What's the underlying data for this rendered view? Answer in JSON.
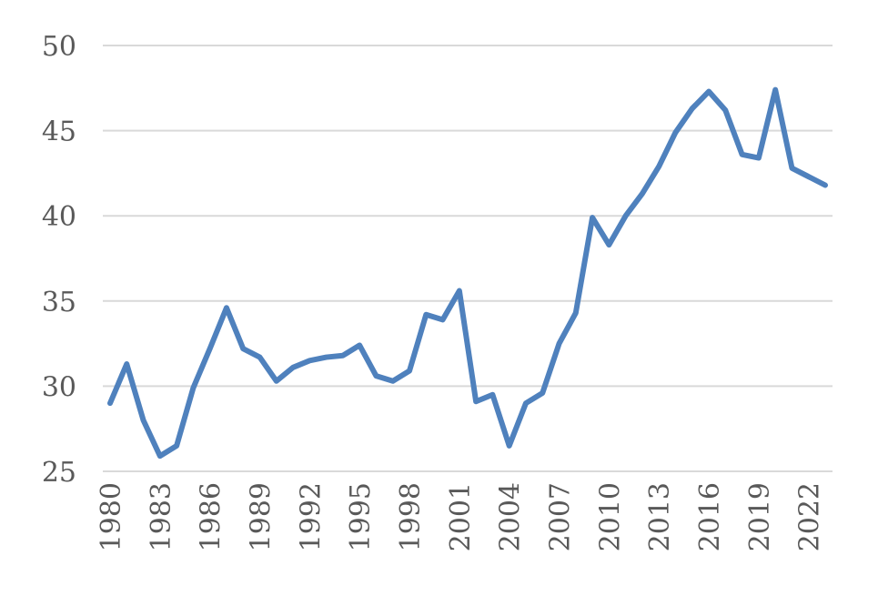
{
  "chart_data": {
    "type": "line",
    "x": [
      1980,
      1981,
      1982,
      1983,
      1984,
      1985,
      1986,
      1987,
      1988,
      1989,
      1990,
      1991,
      1992,
      1993,
      1994,
      1995,
      1996,
      1997,
      1998,
      1999,
      2000,
      2001,
      2002,
      2003,
      2004,
      2005,
      2006,
      2007,
      2008,
      2009,
      2010,
      2011,
      2012,
      2013,
      2014,
      2015,
      2016,
      2017,
      2018,
      2019,
      2020,
      2021,
      2022,
      2023
    ],
    "series": [
      {
        "color": "#4f81bd",
        "values": [
          29.0,
          31.3,
          28.0,
          25.9,
          26.5,
          29.9,
          32.2,
          34.6,
          32.2,
          31.7,
          30.3,
          31.1,
          31.5,
          31.7,
          31.8,
          32.4,
          30.6,
          30.3,
          30.9,
          34.2,
          33.9,
          35.6,
          29.1,
          29.5,
          26.5,
          29.0,
          29.6,
          32.5,
          34.3,
          39.9,
          38.3,
          40.0,
          41.3,
          42.9,
          44.9,
          46.3,
          47.3,
          46.2,
          43.6,
          43.4,
          47.4,
          42.8,
          42.3,
          41.8
        ]
      }
    ],
    "xlim": [
      1980,
      2023
    ],
    "xticks": [
      1980,
      1983,
      1986,
      1989,
      1992,
      1995,
      1998,
      2001,
      2004,
      2007,
      2010,
      2013,
      2016,
      2019,
      2022
    ],
    "ylim": [
      25,
      50
    ],
    "yticks": [
      25,
      30,
      35,
      40,
      45,
      50
    ],
    "grid": true
  }
}
